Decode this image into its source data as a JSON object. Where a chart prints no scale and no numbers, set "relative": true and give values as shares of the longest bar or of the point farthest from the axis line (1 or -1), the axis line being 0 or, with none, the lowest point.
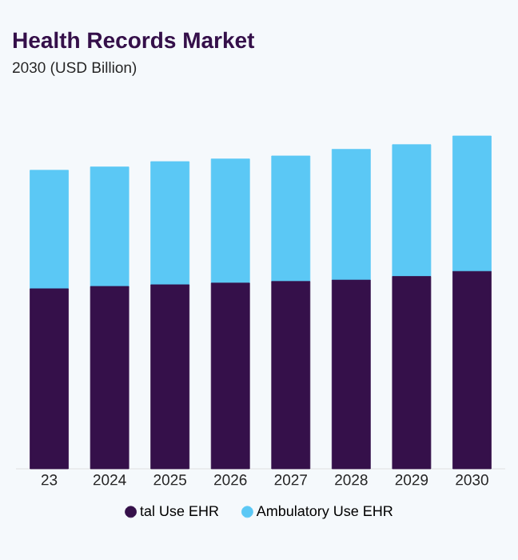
{
  "chart_data": {
    "type": "bar",
    "title": "Health Records Market",
    "subtitle": "2030 (USD Billion)",
    "stacked": true,
    "relative": true,
    "legend": "bottom",
    "categories": [
      "23",
      "2024",
      "2025",
      "2026",
      "2027",
      "2028",
      "2029",
      "2030"
    ],
    "series": [
      {
        "name": "tal Use EHR",
        "color": "#35104a",
        "values": [
          0.541,
          0.548,
          0.553,
          0.558,
          0.563,
          0.567,
          0.578,
          0.593
        ]
      },
      {
        "name": "Ambulatory Use EHR",
        "color": "#5bc8f5",
        "values": [
          0.356,
          0.359,
          0.37,
          0.373,
          0.377,
          0.393,
          0.396,
          0.407
        ]
      }
    ]
  }
}
